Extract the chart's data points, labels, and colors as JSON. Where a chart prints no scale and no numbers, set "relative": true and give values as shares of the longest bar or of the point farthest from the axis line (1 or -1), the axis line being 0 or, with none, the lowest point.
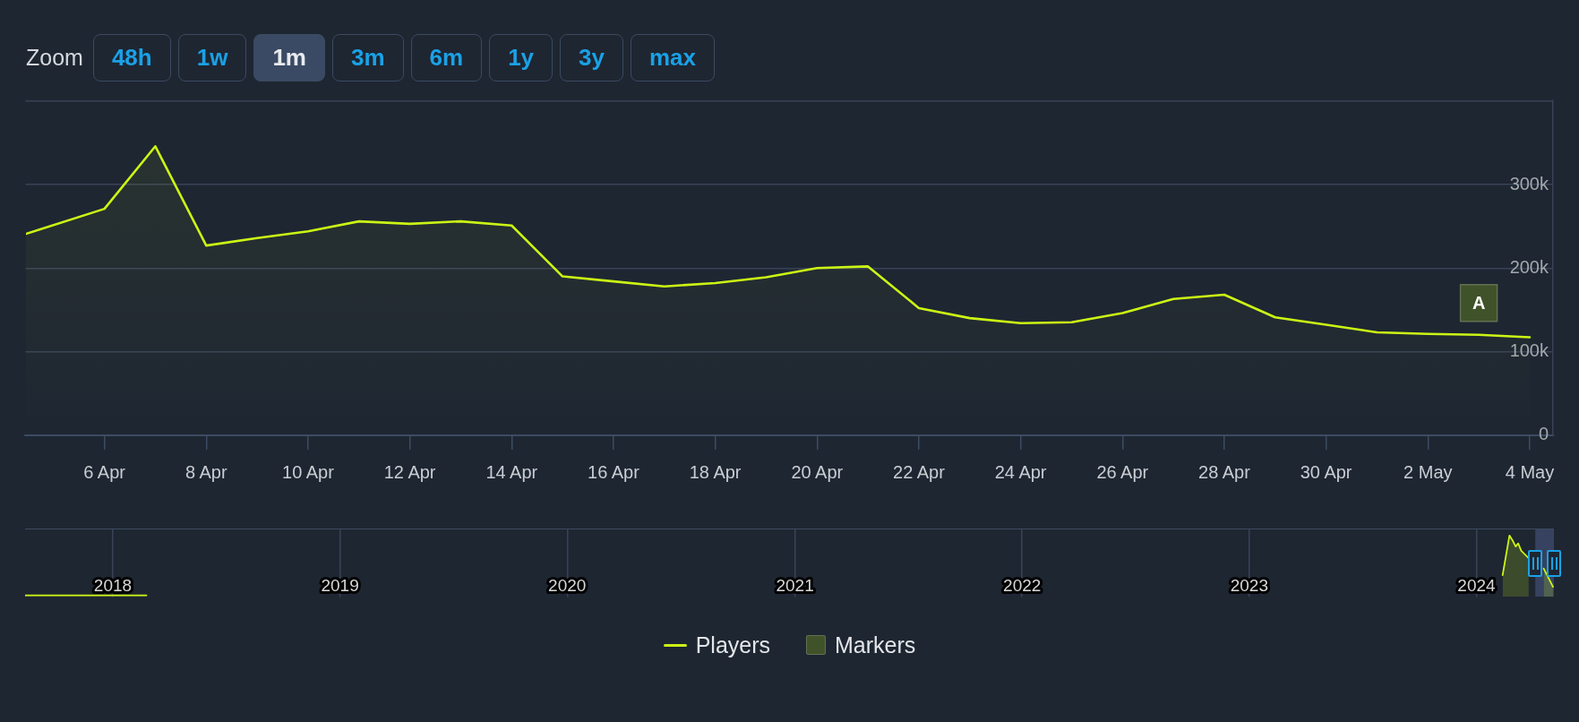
{
  "chart_data": [
    {
      "type": "area",
      "series": [
        {
          "name": "Players",
          "color": "#ccf514",
          "x": [
            "2024-04-04T11:00",
            "2024-04-06",
            "2024-04-07",
            "2024-04-08",
            "2024-04-09",
            "2024-04-10",
            "2024-04-11",
            "2024-04-12",
            "2024-04-13",
            "2024-04-14",
            "2024-04-15",
            "2024-04-16",
            "2024-04-17",
            "2024-04-18",
            "2024-04-19",
            "2024-04-20",
            "2024-04-21",
            "2024-04-22",
            "2024-04-23",
            "2024-04-24",
            "2024-04-25",
            "2024-04-26",
            "2024-04-27",
            "2024-04-28",
            "2024-04-29",
            "2024-04-30",
            "2024-05-01",
            "2024-05-02",
            "2024-05-03",
            "2024-05-04"
          ],
          "values": [
            241000,
            271000,
            346000,
            227000,
            236000,
            244000,
            256000,
            253000,
            256000,
            251000,
            190000,
            184000,
            178000,
            182000,
            189000,
            200000,
            202000,
            152000,
            140000,
            134000,
            135000,
            146000,
            163000,
            168000,
            141000,
            132000,
            123000,
            121000,
            120000,
            117000
          ]
        },
        {
          "name": "Markers",
          "type": "scatter",
          "color": "#3f5229",
          "marker": "square",
          "x": [
            "2024-05-03"
          ],
          "values": [
            158000
          ],
          "value_labels": [
            "A"
          ]
        }
      ],
      "xlim": [
        "2024-04-04T11:00",
        "2024-05-04T11:00"
      ],
      "xticks": [
        {
          "value": "2024-04-06",
          "label": "6 Apr"
        },
        {
          "value": "2024-04-08",
          "label": "8 Apr"
        },
        {
          "value": "2024-04-10",
          "label": "10 Apr"
        },
        {
          "value": "2024-04-12",
          "label": "12 Apr"
        },
        {
          "value": "2024-04-14",
          "label": "14 Apr"
        },
        {
          "value": "2024-04-16",
          "label": "16 Apr"
        },
        {
          "value": "2024-04-18",
          "label": "18 Apr"
        },
        {
          "value": "2024-04-20",
          "label": "20 Apr"
        },
        {
          "value": "2024-04-22",
          "label": "22 Apr"
        },
        {
          "value": "2024-04-24",
          "label": "24 Apr"
        },
        {
          "value": "2024-04-26",
          "label": "26 Apr"
        },
        {
          "value": "2024-04-28",
          "label": "28 Apr"
        },
        {
          "value": "2024-04-30",
          "label": "30 Apr"
        },
        {
          "value": "2024-05-02",
          "label": "2 May"
        },
        {
          "value": "2024-05-04",
          "label": "4 May"
        }
      ],
      "ylim": [
        0,
        400000
      ],
      "yticks": [
        0,
        {
          "value": 100000,
          "label": "100k"
        },
        {
          "value": 200000,
          "label": "200k"
        },
        {
          "value": 300000,
          "label": "300k"
        },
        {
          "value": 400000,
          "label": null
        }
      ],
      "grid": "y",
      "legend": "bottom",
      "marker": "none",
      "annotations": [
        "Zoom",
        "48h",
        "1w",
        "1m",
        "3m",
        "6m",
        "1y",
        "3y",
        "max"
      ]
    },
    {
      "type": "area",
      "relative": true,
      "color": "#ccf514",
      "x": [
        "2017-08-13",
        "2018-02-24",
        "2021-01-01",
        "2024-02-12",
        "2024-02-23",
        "2024-02-28",
        "2024-03-04",
        "2024-03-08",
        "2024-03-13",
        "2024-03-25",
        "2024-04-07",
        "2024-04-18",
        "2024-05-03"
      ],
      "values": [
        0.02,
        0.02,
        null,
        0.35,
        1,
        0.92,
        0.82,
        0.87,
        0.75,
        0.63,
        null,
        0.46,
        0.16
      ],
      "xlim": [
        "2017-08-13",
        "2024-05-04T11:00"
      ],
      "xticks": [
        "2018",
        "2019",
        "2020",
        "2021",
        "2022",
        "2023",
        "2024"
      ],
      "grid": "x",
      "bands": [
        {
          "axis": "x",
          "from": "2024-04-04T11:00",
          "to": "2024-05-04T11:00",
          "color": "#4a5a85"
        }
      ]
    }
  ]
}
